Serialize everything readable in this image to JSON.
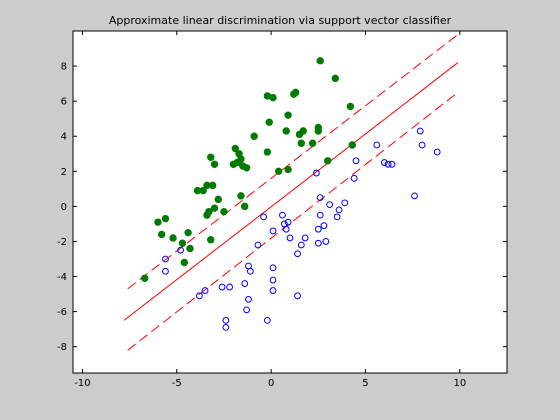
{
  "chart_data": {
    "type": "scatter",
    "title": "Approximate linear discrimination via support vector classifier",
    "xlabel": "",
    "ylabel": "",
    "xlim": [
      -10.5,
      12.5
    ],
    "ylim": [
      -9.5,
      10
    ],
    "xticks": [
      -10,
      -5,
      0,
      5,
      10
    ],
    "yticks": [
      -8,
      -6,
      -4,
      -2,
      0,
      2,
      4,
      6,
      8
    ],
    "grid": false,
    "background": "#cccccc",
    "axes_color": "#ffffff",
    "series": [
      {
        "marker": "filled-circle",
        "color": "#007a00",
        "points": [
          [
            -6.7,
            -4.1
          ],
          [
            -5.2,
            -1.8
          ],
          [
            -4.6,
            -3.2
          ],
          [
            -4.4,
            -1.5
          ],
          [
            -4.7,
            -2.1
          ],
          [
            -4.3,
            -2.4
          ],
          [
            -6.0,
            -0.9
          ],
          [
            -5.8,
            -1.6
          ],
          [
            -5.6,
            -0.7
          ],
          [
            -3.9,
            0.9
          ],
          [
            -3.6,
            0.9
          ],
          [
            -3.4,
            1.2
          ],
          [
            -3.1,
            1.2
          ],
          [
            -3.3,
            -0.3
          ],
          [
            -3.4,
            -0.5
          ],
          [
            -3.0,
            -0.1
          ],
          [
            -2.8,
            0.4
          ],
          [
            -3.2,
            -1.9
          ],
          [
            -3.2,
            2.8
          ],
          [
            -3.0,
            2.4
          ],
          [
            -2.5,
            -0.3
          ],
          [
            -2.0,
            2.4
          ],
          [
            -1.9,
            3.3
          ],
          [
            -1.7,
            3.0
          ],
          [
            -1.8,
            2.5
          ],
          [
            -1.6,
            2.7
          ],
          [
            -1.5,
            2.3
          ],
          [
            -1.3,
            2.2
          ],
          [
            -1.6,
            0.6
          ],
          [
            -1.4,
            0.0
          ],
          [
            -0.2,
            6.3
          ],
          [
            0.1,
            6.2
          ],
          [
            -0.9,
            4.0
          ],
          [
            -0.2,
            3.1
          ],
          [
            -0.1,
            4.8
          ],
          [
            0.4,
            2.0
          ],
          [
            0.8,
            4.3
          ],
          [
            0.9,
            2.1
          ],
          [
            0.9,
            5.2
          ],
          [
            1.2,
            6.4
          ],
          [
            1.3,
            6.5
          ],
          [
            1.5,
            4.1
          ],
          [
            1.6,
            3.6
          ],
          [
            1.7,
            4.3
          ],
          [
            2.2,
            3.6
          ],
          [
            2.5,
            4.5
          ],
          [
            2.5,
            4.3
          ],
          [
            2.6,
            8.3
          ],
          [
            3.0,
            2.6
          ],
          [
            3.4,
            7.3
          ],
          [
            4.2,
            5.7
          ],
          [
            4.3,
            3.5
          ]
        ]
      },
      {
        "marker": "open-circle",
        "color": "#0000ff",
        "points": [
          [
            -5.6,
            -3.0
          ],
          [
            -5.6,
            -3.7
          ],
          [
            -4.8,
            -2.5
          ],
          [
            -3.8,
            -5.1
          ],
          [
            -3.5,
            -4.8
          ],
          [
            -2.6,
            -4.6
          ],
          [
            -2.4,
            -6.5
          ],
          [
            -2.4,
            -6.9
          ],
          [
            -2.2,
            -4.6
          ],
          [
            -1.4,
            -4.4
          ],
          [
            -1.2,
            -3.4
          ],
          [
            -1.1,
            -3.7
          ],
          [
            -1.2,
            -5.3
          ],
          [
            -1.3,
            -5.9
          ],
          [
            -0.7,
            -2.2
          ],
          [
            -0.4,
            -0.6
          ],
          [
            -0.2,
            -6.5
          ],
          [
            0.1,
            -3.5
          ],
          [
            0.1,
            -4.2
          ],
          [
            0.1,
            -4.8
          ],
          [
            0.1,
            -1.4
          ],
          [
            0.6,
            -0.5
          ],
          [
            0.7,
            -1.0
          ],
          [
            0.9,
            -0.9
          ],
          [
            0.8,
            -1.3
          ],
          [
            1.0,
            -1.8
          ],
          [
            1.4,
            -5.1
          ],
          [
            1.4,
            -2.7
          ],
          [
            1.6,
            -2.2
          ],
          [
            1.8,
            -1.8
          ],
          [
            2.4,
            1.9
          ],
          [
            2.6,
            0.5
          ],
          [
            2.6,
            -0.5
          ],
          [
            2.5,
            -1.3
          ],
          [
            2.5,
            -2.1
          ],
          [
            2.8,
            -1.1
          ],
          [
            2.9,
            -2.0
          ],
          [
            3.1,
            0.1
          ],
          [
            3.5,
            -0.6
          ],
          [
            3.6,
            -0.2
          ],
          [
            3.9,
            0.2
          ],
          [
            4.4,
            1.6
          ],
          [
            4.5,
            2.6
          ],
          [
            5.6,
            3.5
          ],
          [
            6.0,
            2.5
          ],
          [
            6.2,
            2.4
          ],
          [
            6.4,
            2.4
          ],
          [
            7.6,
            0.6
          ],
          [
            7.9,
            4.3
          ],
          [
            8.0,
            3.5
          ],
          [
            8.8,
            3.1
          ]
        ]
      }
    ],
    "lines": [
      {
        "style": "solid",
        "color": "#ff0000",
        "from": [
          -7.8,
          -6.5
        ],
        "to": [
          9.9,
          8.2
        ]
      },
      {
        "style": "dashed",
        "color": "#ff0000",
        "from": [
          -7.6,
          -4.7
        ],
        "to": [
          9.9,
          9.8
        ]
      },
      {
        "style": "dashed",
        "color": "#ff0000",
        "from": [
          -7.6,
          -8.2
        ],
        "to": [
          9.9,
          6.5
        ]
      }
    ]
  }
}
